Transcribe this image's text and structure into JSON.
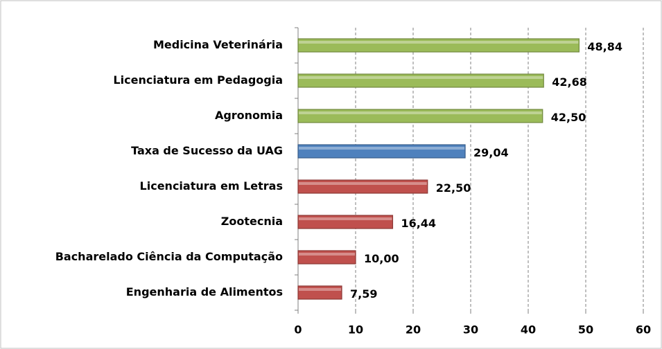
{
  "chart_data": {
    "type": "barh",
    "categories": [
      "Medicina Veterinária",
      "Licenciatura em Pedagogia",
      "Agronomia",
      "Taxa de Sucesso da UAG",
      "Licenciatura em Letras",
      "Zootecnia",
      "Bacharelado Ciência da Computação",
      "Engenharia de Alimentos"
    ],
    "values": [
      48.84,
      42.68,
      42.5,
      29.04,
      22.5,
      16.44,
      10.0,
      7.59
    ],
    "value_labels": [
      "48,84",
      "42,68",
      "42,50",
      "29,04",
      "22,50",
      "16,44",
      "10,00",
      "7,59"
    ],
    "colors": [
      "#9bbb59",
      "#9bbb59",
      "#9bbb59",
      "#4f81bd",
      "#c0504d",
      "#c0504d",
      "#c0504d",
      "#c0504d"
    ],
    "xlim": [
      0,
      60
    ],
    "xticks": [
      0,
      10,
      20,
      30,
      40,
      50,
      60
    ],
    "grid": true
  }
}
